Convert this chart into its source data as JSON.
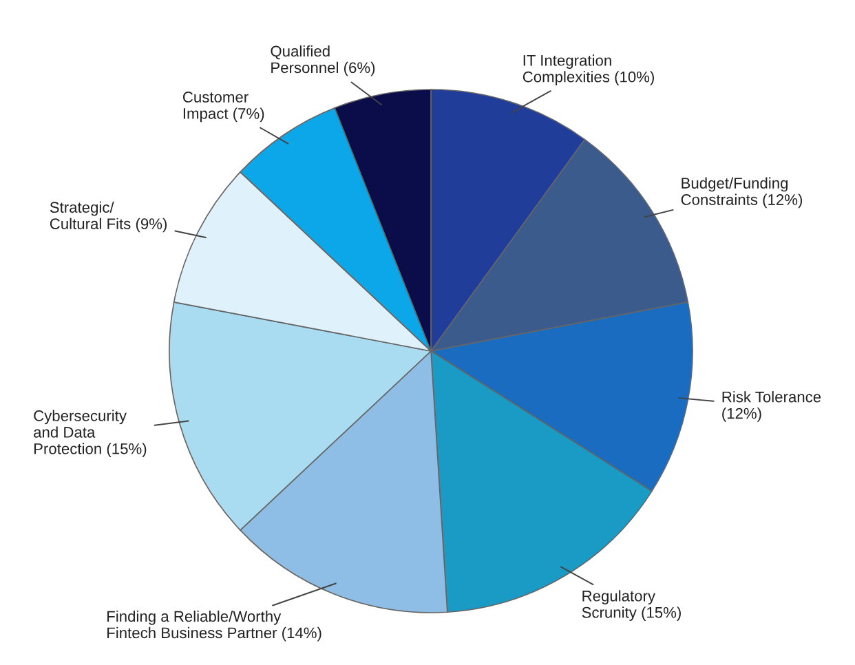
{
  "chart_data": {
    "type": "pie",
    "categories": [
      "IT Integration\nComplexities (10%)",
      "Budget/Funding\nConstraints (12%)",
      "Risk Tolerance\n(12%)",
      "Regulatory\nScrunity (15%)",
      "Finding a Reliable/Worthy\nFintech Business Partner (14%)",
      "Cybersecurity\nand Data\nProtection (15%)",
      "Strategic/\nCultural Fits (9%)",
      "Customer\nImpact (7%)",
      "Qualified\nPersonnel (6%)"
    ],
    "values": [
      10,
      12,
      12,
      15,
      14,
      15,
      9,
      7,
      6
    ],
    "colors": [
      "#1f3d99",
      "#3a5b8c",
      "#1a6cc0",
      "#1a9bc6",
      "#8ebde6",
      "#a9dcf1",
      "#dff1fa",
      "#0ba7e8",
      "#0a0d4a"
    ],
    "legend": false
  }
}
